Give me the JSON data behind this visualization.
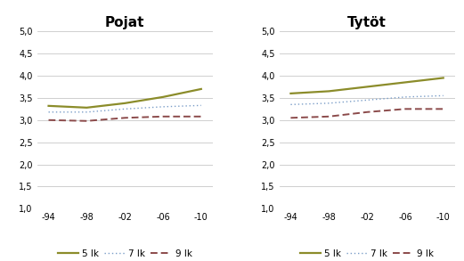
{
  "x_labels": [
    "-94",
    "-98",
    "-02",
    "-06",
    "-10"
  ],
  "pojat": {
    "title": "Pojat",
    "lk5": [
      3.32,
      3.28,
      3.38,
      3.52,
      3.7
    ],
    "lk7": [
      3.18,
      3.18,
      3.25,
      3.3,
      3.33
    ],
    "lk9": [
      3.0,
      2.98,
      3.05,
      3.08,
      3.08
    ]
  },
  "tytot": {
    "title": "Tytöt",
    "lk5": [
      3.6,
      3.65,
      3.75,
      3.85,
      3.95
    ],
    "lk7": [
      3.35,
      3.38,
      3.45,
      3.52,
      3.55
    ],
    "lk9": [
      3.05,
      3.08,
      3.18,
      3.25,
      3.25
    ]
  },
  "color_lk5": "#8B8C2A",
  "color_lk7": "#7B9EC8",
  "color_lk9": "#8B4A4A",
  "ylim": [
    1.0,
    5.0
  ],
  "yticks": [
    1.0,
    1.5,
    2.0,
    2.5,
    3.0,
    3.5,
    4.0,
    4.5,
    5.0
  ],
  "legend_labels": [
    "5 lk",
    "7 lk",
    "9 lk"
  ],
  "bg_color": "#FFFFFF",
  "grid_color": "#C8C8C8",
  "title_fontsize": 11,
  "tick_fontsize": 7,
  "legend_fontsize": 7.5
}
